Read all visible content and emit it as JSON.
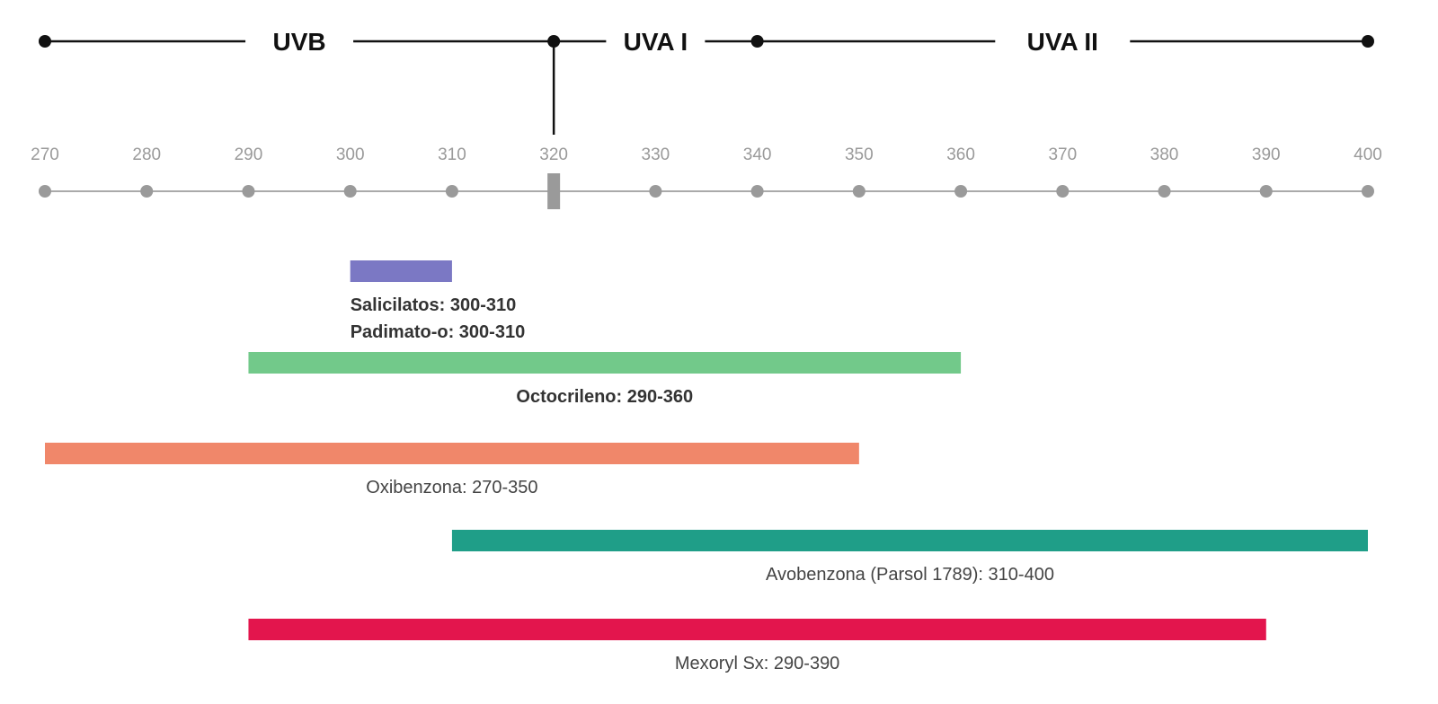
{
  "chart_data": {
    "type": "bar",
    "orientation": "horizontal-range",
    "x_range": [
      270,
      400
    ],
    "ticks": [
      "270",
      "280",
      "290",
      "300",
      "310",
      "320",
      "330",
      "340",
      "350",
      "360",
      "370",
      "380",
      "390",
      "400"
    ],
    "tick_values": [
      270,
      280,
      290,
      300,
      310,
      320,
      330,
      340,
      350,
      360,
      370,
      380,
      390,
      400
    ],
    "band_marker": 320,
    "bands": [
      {
        "label": "UVB",
        "start": 270,
        "end": 320
      },
      {
        "label": "UVA I",
        "start": 320,
        "end": 340
      },
      {
        "label": "UVA II",
        "start": 340,
        "end": 400
      }
    ],
    "series": [
      {
        "start": 300,
        "end": 310,
        "color": "#7b78c4",
        "labels": [
          "Salicilatos: 300-310",
          "Padimato-o: 300-310"
        ],
        "label_align": "start",
        "label_bold": true
      },
      {
        "start": 290,
        "end": 360,
        "color": "#72c98a",
        "labels": [
          "Octocrileno: 290-360"
        ],
        "label_align": "center",
        "label_bold": true
      },
      {
        "start": 270,
        "end": 350,
        "color": "#f0876a",
        "labels": [
          "Oxibenzona: 270-350"
        ],
        "label_align": "center",
        "label_bold": false
      },
      {
        "start": 310,
        "end": 400,
        "color": "#1f9e88",
        "labels": [
          "Avobenzona (Parsol 1789): 310-400"
        ],
        "label_align": "center",
        "label_bold": false
      },
      {
        "start": 290,
        "end": 390,
        "color": "#e3154d",
        "labels": [
          "Mexoryl Sx: 290-390"
        ],
        "label_align": "center",
        "label_bold": false
      }
    ],
    "colors": {
      "line": "#111111",
      "axis": "#aaaaaa",
      "dot": "#9a9a9a"
    }
  }
}
